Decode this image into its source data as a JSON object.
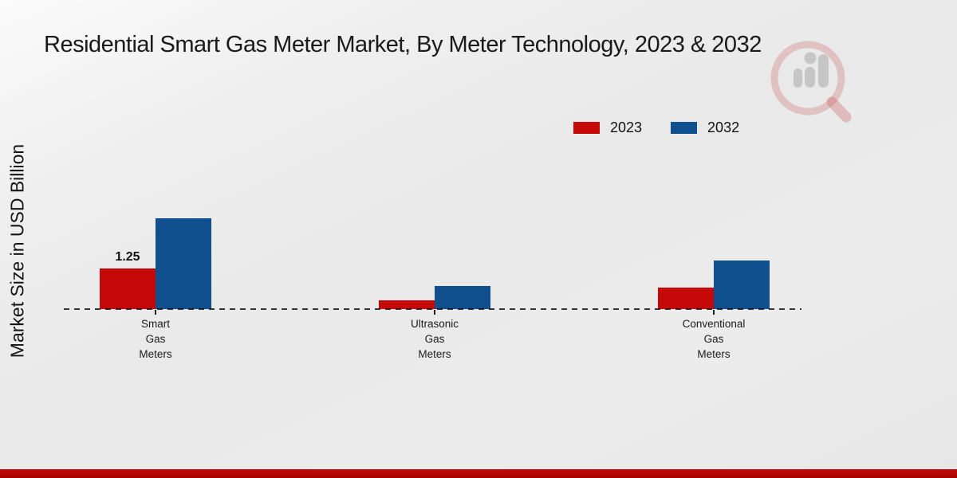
{
  "title": "Residential Smart Gas Meter Market, By Meter Technology, 2023 & 2032",
  "y_axis_label": "Market Size in USD Billion",
  "legend": [
    {
      "label": "2023",
      "color": "#c50808"
    },
    {
      "label": "2032",
      "color": "#11508f"
    }
  ],
  "colors": {
    "series_2023": "#c50808",
    "series_2032": "#11508f",
    "footer_strip": "#b90707",
    "axis_line": "#1a1a1a",
    "background": "#ebebeb"
  },
  "watermark": {
    "name": "market-research-chart-logo"
  },
  "chart_data": {
    "type": "bar",
    "title": "Residential Smart Gas Meter Market, By Meter Technology, 2023 & 2032",
    "xlabel": "",
    "ylabel": "Market Size in USD Billion",
    "categories": [
      "Smart Gas Meters",
      "Ultrasonic Gas Meters",
      "Conventional Gas Meters"
    ],
    "categories_multiline": [
      [
        "Smart",
        "Gas",
        "Meters"
      ],
      [
        "Ultrasonic",
        "Gas",
        "Meters"
      ],
      [
        "Conventional",
        "Gas",
        "Meters"
      ]
    ],
    "series": [
      {
        "name": "2023",
        "color": "#c50808",
        "values": [
          1.25,
          0.27,
          0.66
        ]
      },
      {
        "name": "2032",
        "color": "#11508f",
        "values": [
          2.77,
          0.7,
          1.49
        ]
      }
    ],
    "bar_labels": [
      {
        "series_index": 0,
        "category_index": 0,
        "text": "1.25"
      }
    ],
    "ylim": [
      0,
      3
    ],
    "grid": false,
    "axis_style": "dashed-baseline-only",
    "legend_position": "top-right"
  }
}
